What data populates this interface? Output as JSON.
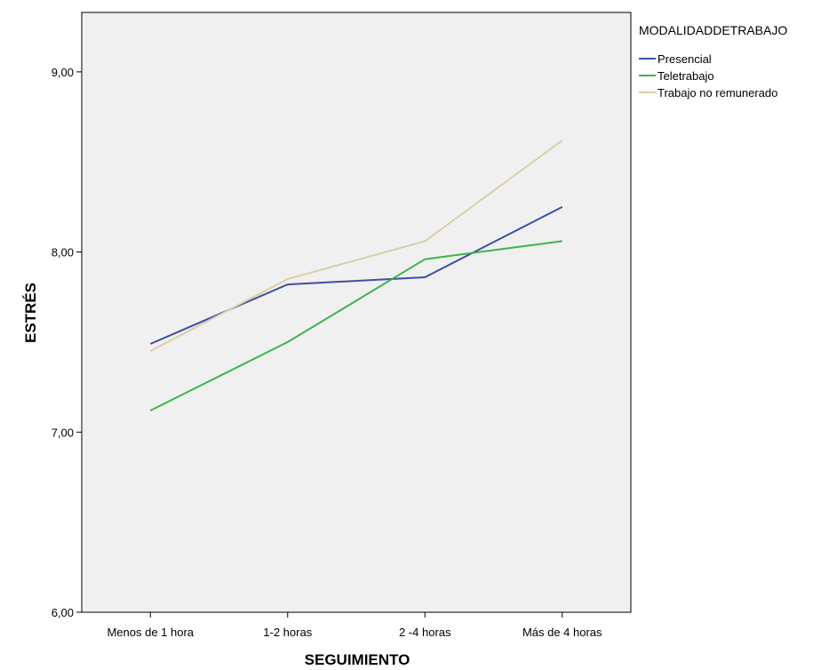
{
  "chart_data": {
    "type": "line",
    "title": "",
    "xlabel": "SEGUIMIENTO",
    "ylabel": "ESTRÉS",
    "categories": [
      "Menos de 1 hora",
      "1-2 horas",
      "2 -4 horas",
      "Más de 4 horas"
    ],
    "ylim": [
      6.0,
      9.33
    ],
    "yticks": [
      6.0,
      7.0,
      8.0,
      9.0
    ],
    "ytick_labels": [
      "6,00",
      "7,00",
      "8,00",
      "9,00"
    ],
    "grid": false,
    "background": "#f0f0f0",
    "legend": {
      "title": "MODALIDADDETRABAJO",
      "placement": "right-outside"
    },
    "series": [
      {
        "name": "Presencial",
        "color": "#3e4fa0",
        "values": [
          7.49,
          7.82,
          7.86,
          8.25
        ]
      },
      {
        "name": "Teletrabajo",
        "color": "#3cb44b",
        "values": [
          7.12,
          7.5,
          7.96,
          8.06
        ]
      },
      {
        "name": "Trabajo no remunerado",
        "color": "#d8cfa6",
        "values": [
          7.45,
          7.85,
          8.06,
          8.62
        ]
      }
    ]
  }
}
